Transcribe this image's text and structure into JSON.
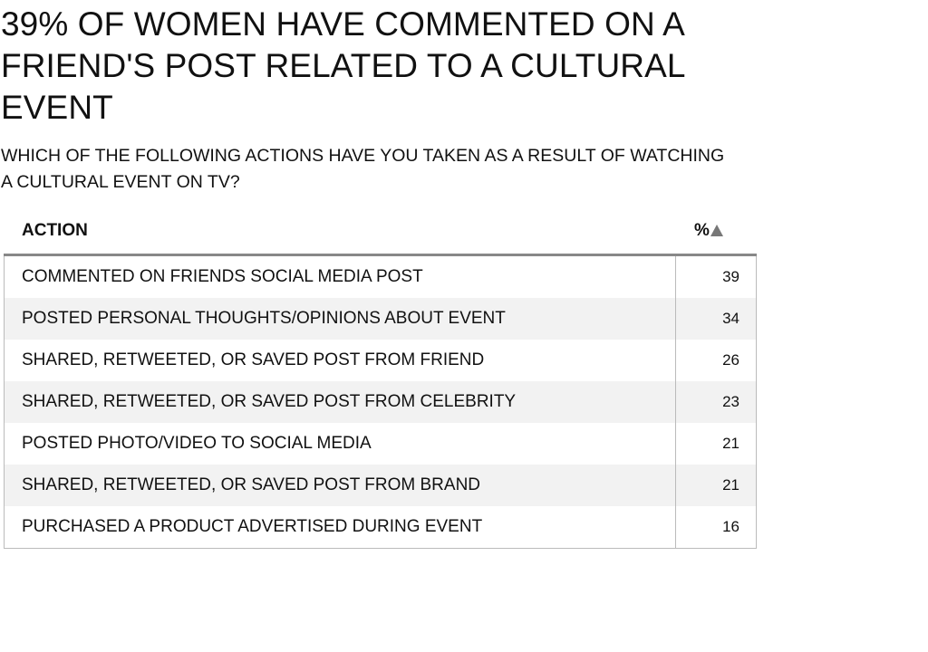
{
  "title": "39% OF WOMEN HAVE COMMENTED ON A FRIEND'S POST RELATED TO A CULTURAL EVENT",
  "subtitle": "WHICH OF THE FOLLOWING ACTIONS HAVE YOU TAKEN AS A RESULT OF WATCHING A CULTURAL EVENT ON TV?",
  "table": {
    "col_action": "ACTION",
    "col_pct": "%",
    "sort_icon": "triangle-up-icon"
  },
  "chart_data": {
    "type": "table",
    "columns": [
      "ACTION",
      "%"
    ],
    "rows": [
      {
        "action": "COMMENTED ON FRIENDS SOCIAL MEDIA POST",
        "value": 39
      },
      {
        "action": "POSTED PERSONAL THOUGHTS/OPINIONS ABOUT EVENT",
        "value": 34
      },
      {
        "action": "SHARED, RETWEETED, OR SAVED POST FROM FRIEND",
        "value": 26
      },
      {
        "action": "SHARED, RETWEETED, OR SAVED POST FROM CELEBRITY",
        "value": 23
      },
      {
        "action": "POSTED PHOTO/VIDEO TO SOCIAL MEDIA",
        "value": 21
      },
      {
        "action": "SHARED, RETWEETED, OR SAVED POST FROM BRAND",
        "value": 21
      },
      {
        "action": "PURCHASED A PRODUCT ADVERTISED DURING EVENT",
        "value": 16
      }
    ]
  }
}
